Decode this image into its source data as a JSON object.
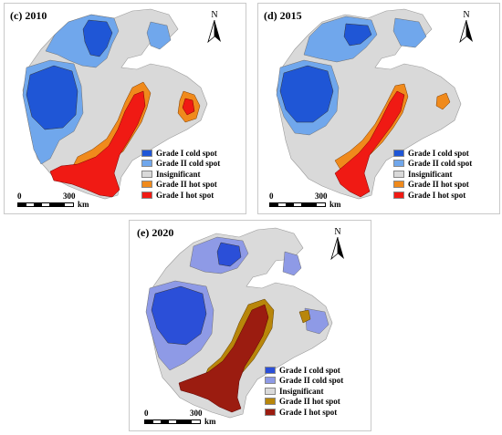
{
  "panels": [
    {
      "title": "(c) 2010",
      "colors": {
        "cold1": "#1f56d6",
        "cold2": "#70a7ec",
        "insig": "#d9d9d9",
        "hot2": "#f08a1c",
        "hot1": "#f01a14"
      }
    },
    {
      "title": "(d) 2015",
      "colors": {
        "cold1": "#1f56d6",
        "cold2": "#70a7ec",
        "insig": "#d9d9d9",
        "hot2": "#f08a1c",
        "hot1": "#f01a14"
      }
    },
    {
      "title": "(e) 2020",
      "colors": {
        "cold1": "#2b4fd8",
        "cold2": "#8e9ae6",
        "insig": "#dadada",
        "hot2": "#b8860b",
        "hot1": "#9b1c10"
      }
    }
  ],
  "legend": {
    "items": [
      {
        "key": "cold1",
        "label": "Grade I cold spot"
      },
      {
        "key": "cold2",
        "label": "Grade II cold spot"
      },
      {
        "key": "insig",
        "label": "Insignificant"
      },
      {
        "key": "hot2",
        "label": "Grade II hot spot"
      },
      {
        "key": "hot1",
        "label": "Grade I hot spot"
      }
    ]
  },
  "north_label": "N",
  "scale": {
    "start": "0",
    "end": "300",
    "unit": "km"
  }
}
